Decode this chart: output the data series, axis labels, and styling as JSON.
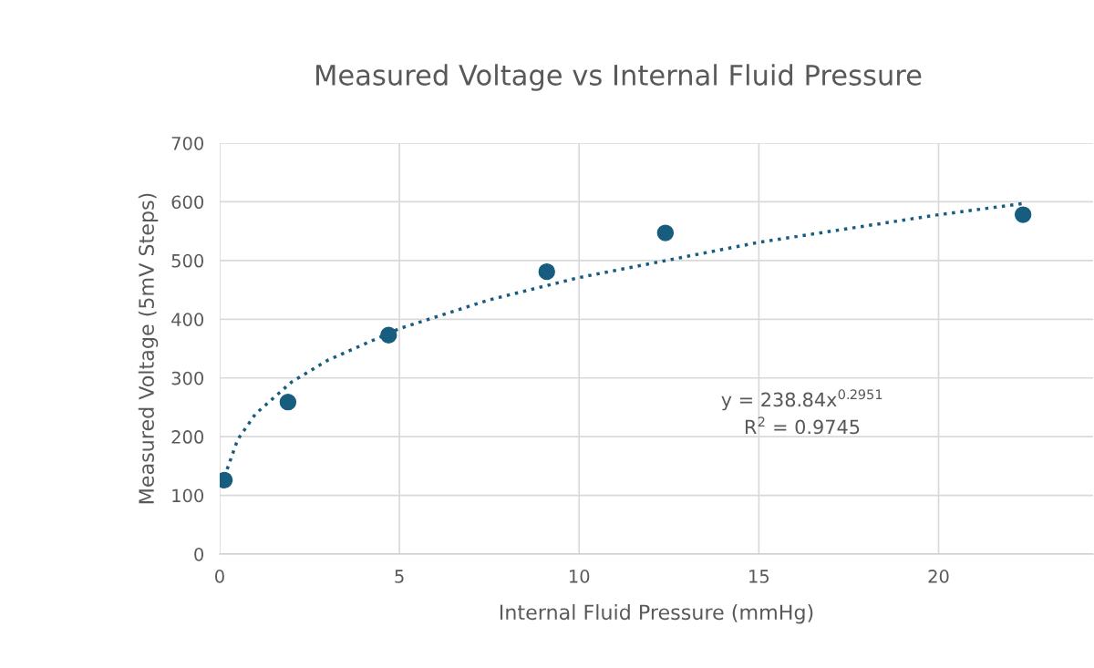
{
  "chart_data": {
    "type": "scatter",
    "title": "Measured Voltage vs Internal Fluid Pressure",
    "xlabel": "Internal Fluid Pressure (mmHg)",
    "ylabel": "Measured Voltage (5mV Steps)",
    "xlim": [
      0,
      24.3
    ],
    "xticks": [
      0,
      5,
      10,
      15,
      20
    ],
    "ylim": [
      0,
      700
    ],
    "yticks": [
      0,
      100,
      200,
      300,
      400,
      500,
      600,
      700
    ],
    "grid": true,
    "annotations": [
      "y = 238.84x$^{0.2951}$",
      "R$^{2}$ = 0.9745"
    ],
    "series": [
      {
        "marker": "circle",
        "color": "#175d80",
        "x": [
          0.13,
          1.9,
          4.7,
          9.1,
          12.4,
          22.35
        ],
        "values": [
          126,
          259,
          373,
          481,
          547,
          578
        ]
      },
      {
        "type": "line",
        "line_style": "dotted",
        "color": "#175d80",
        "x": [
          0.13,
          0.5,
          1,
          2,
          3,
          5,
          7.5,
          10,
          15,
          20,
          22.35
        ],
        "values": [
          131,
          195,
          239,
          293,
          330,
          384,
          433,
          471,
          531,
          578,
          597
        ]
      }
    ]
  }
}
